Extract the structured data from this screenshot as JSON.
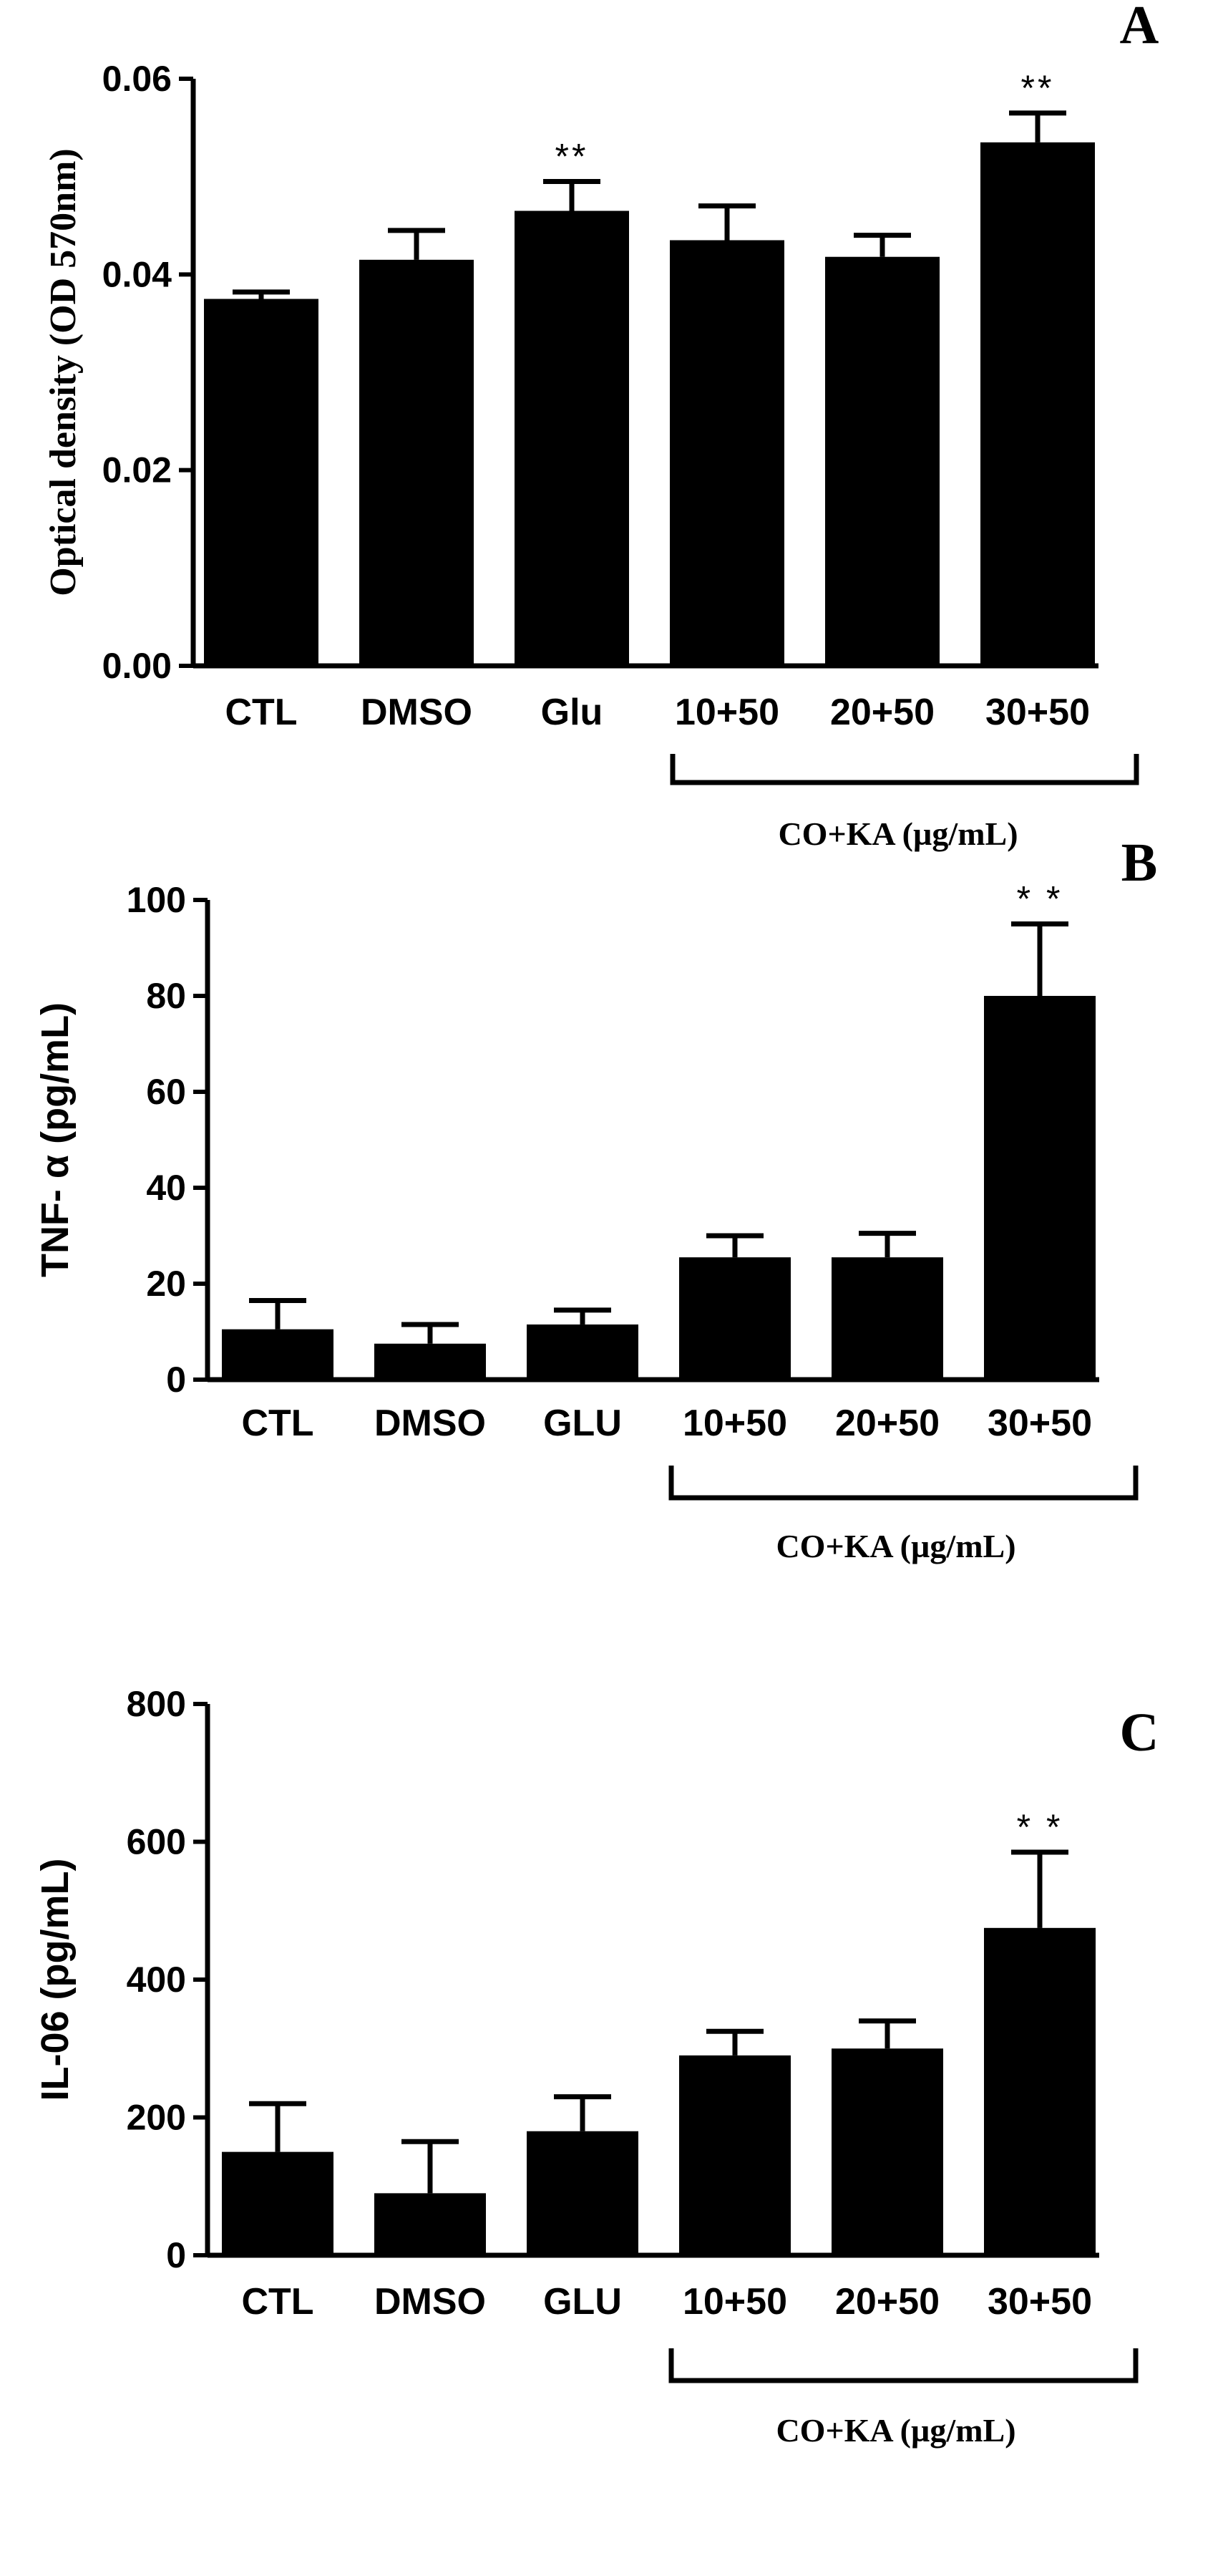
{
  "chart_data": [
    {
      "type": "bar",
      "panel": "A",
      "title": "",
      "xlabel": "",
      "ylabel": "Optical density (OD 570nm)",
      "ylim": [
        0,
        0.06
      ],
      "yticks": [
        "0.00",
        "0.02",
        "0.04",
        "0.06"
      ],
      "categories": [
        "CTL",
        "DMSO",
        "Glu",
        "10+50",
        "20+50",
        "30+50"
      ],
      "values": [
        0.0375,
        0.0415,
        0.0465,
        0.0435,
        0.0418,
        0.0535
      ],
      "errors": [
        0.0007,
        0.003,
        0.003,
        0.0035,
        0.0022,
        0.003
      ],
      "significance": [
        "",
        "",
        "**",
        "",
        "",
        "**"
      ],
      "group_label": "CO+KA  (µg/mL)"
    },
    {
      "type": "bar",
      "panel": "B",
      "title": "",
      "xlabel": "",
      "ylabel": "TNF- α (pg/mL)",
      "ylim": [
        0,
        100
      ],
      "yticks": [
        "0",
        "20",
        "40",
        "60",
        "80",
        "100"
      ],
      "categories": [
        "CTL",
        "DMSO",
        "GLU",
        "10+50",
        "20+50",
        "30+50"
      ],
      "values": [
        10.5,
        7.5,
        11.5,
        25.5,
        25.5,
        80
      ],
      "errors": [
        6,
        4,
        3,
        4.5,
        5,
        15
      ],
      "significance": [
        "",
        "",
        "",
        "",
        "",
        "* *"
      ],
      "group_label": "CO+KA  (µg/mL)"
    },
    {
      "type": "bar",
      "panel": "C",
      "title": "",
      "xlabel": "",
      "ylabel": "IL-06 (pg/mL)",
      "ylim": [
        0,
        800
      ],
      "yticks": [
        "0",
        "200",
        "400",
        "600",
        "800"
      ],
      "categories": [
        "CTL",
        "DMSO",
        "GLU",
        "10+50",
        "20+50",
        "30+50"
      ],
      "values": [
        150,
        90,
        180,
        290,
        300,
        475
      ],
      "errors": [
        70,
        75,
        50,
        35,
        40,
        110
      ],
      "significance": [
        "",
        "",
        "",
        "",
        "",
        "* *"
      ],
      "group_label": "CO+KA  (µg/mL)"
    }
  ]
}
